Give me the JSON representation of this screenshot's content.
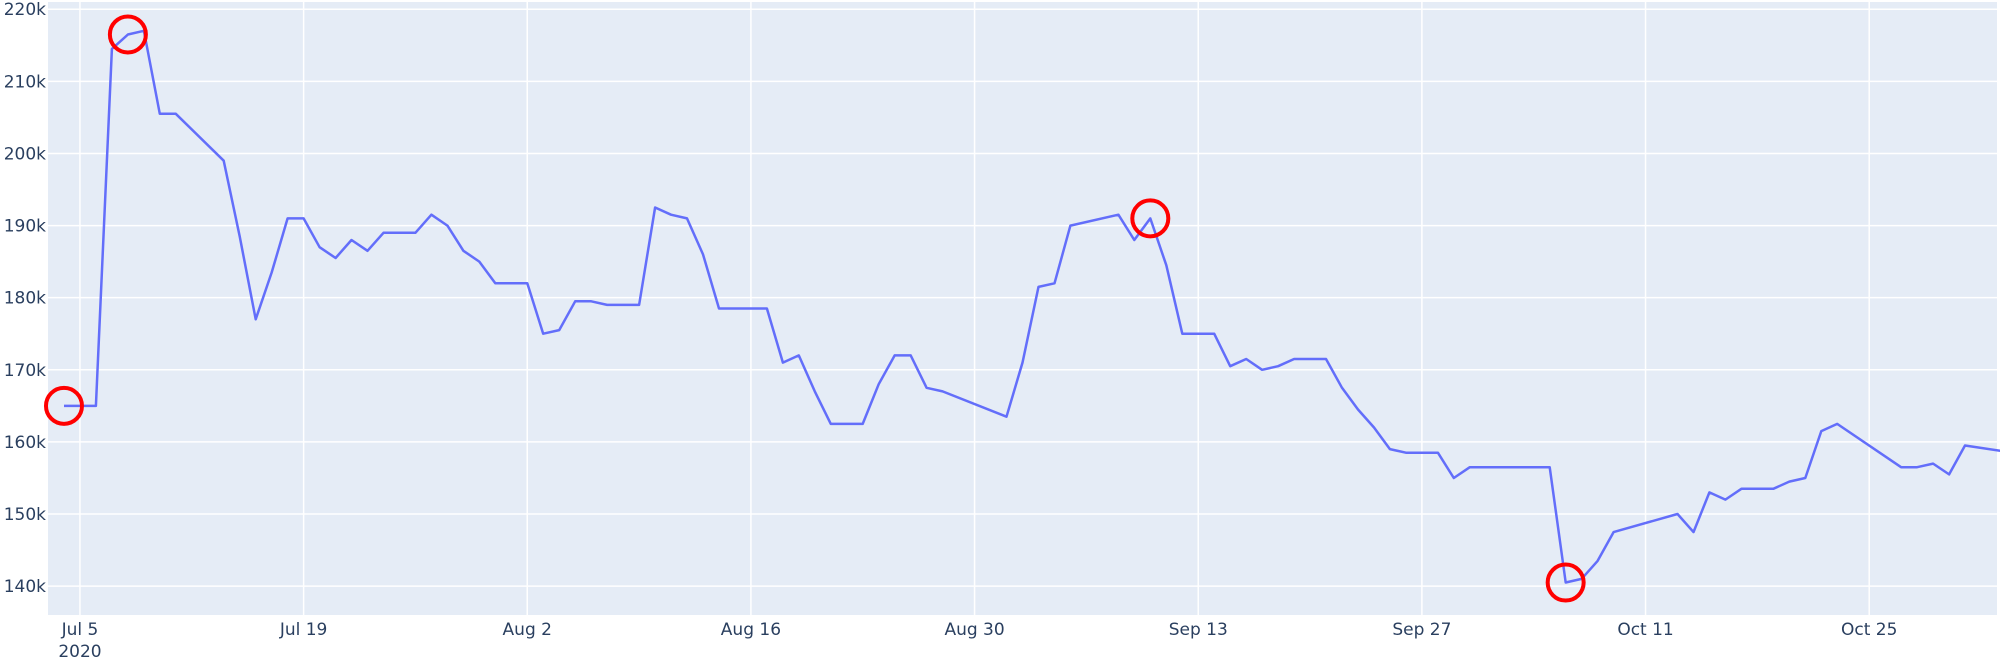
{
  "chart_data": {
    "type": "line",
    "title": "",
    "xlabel": "",
    "ylabel": "",
    "x_start": "2020-07-03",
    "x_end": "2020-11-02",
    "ylim": [
      136000,
      221000
    ],
    "grid": true,
    "legend": "none",
    "colors": {
      "plot_bg": "#e5ecf6",
      "grid": "#ffffff",
      "line": "#636efa",
      "marker": "#ff0000",
      "text": "#2a3f5f"
    },
    "y_ticks": [
      {
        "value": 140000,
        "label": "140k"
      },
      {
        "value": 150000,
        "label": "150k"
      },
      {
        "value": 160000,
        "label": "160k"
      },
      {
        "value": 170000,
        "label": "170k"
      },
      {
        "value": 180000,
        "label": "180k"
      },
      {
        "value": 190000,
        "label": "190k"
      },
      {
        "value": 200000,
        "label": "200k"
      },
      {
        "value": 210000,
        "label": "210k"
      },
      {
        "value": 220000,
        "label": "220k"
      }
    ],
    "x_ticks": [
      {
        "date": "2020-07-05",
        "label": "Jul 5",
        "sublabel": "2020"
      },
      {
        "date": "2020-07-19",
        "label": "Jul 19"
      },
      {
        "date": "2020-08-02",
        "label": "Aug 2"
      },
      {
        "date": "2020-08-16",
        "label": "Aug 16"
      },
      {
        "date": "2020-08-30",
        "label": "Aug 30"
      },
      {
        "date": "2020-09-13",
        "label": "Sep 13"
      },
      {
        "date": "2020-09-27",
        "label": "Sep 27"
      },
      {
        "date": "2020-10-11",
        "label": "Oct 11"
      },
      {
        "date": "2020-10-25",
        "label": "Oct 25"
      }
    ],
    "series": [
      {
        "values": [
          [
            "2020-07-04",
            165000
          ],
          [
            "2020-07-05",
            165000
          ],
          [
            "2020-07-06",
            165000
          ],
          [
            "2020-07-07",
            214500
          ],
          [
            "2020-07-08",
            216500
          ],
          [
            "2020-07-09",
            217000
          ],
          [
            "2020-07-10",
            205500
          ],
          [
            "2020-07-11",
            205500
          ],
          [
            "2020-07-14",
            199000
          ],
          [
            "2020-07-15",
            188500
          ],
          [
            "2020-07-16",
            177000
          ],
          [
            "2020-07-17",
            183500
          ],
          [
            "2020-07-18",
            191000
          ],
          [
            "2020-07-19",
            191000
          ],
          [
            "2020-07-20",
            187000
          ],
          [
            "2020-07-21",
            185500
          ],
          [
            "2020-07-22",
            188000
          ],
          [
            "2020-07-23",
            186500
          ],
          [
            "2020-07-24",
            189000
          ],
          [
            "2020-07-26",
            189000
          ],
          [
            "2020-07-27",
            191500
          ],
          [
            "2020-07-28",
            190000
          ],
          [
            "2020-07-29",
            186500
          ],
          [
            "2020-07-30",
            185000
          ],
          [
            "2020-07-31",
            182000
          ],
          [
            "2020-08-02",
            182000
          ],
          [
            "2020-08-03",
            175000
          ],
          [
            "2020-08-04",
            175500
          ],
          [
            "2020-08-05",
            179500
          ],
          [
            "2020-08-06",
            179500
          ],
          [
            "2020-08-07",
            179000
          ],
          [
            "2020-08-09",
            179000
          ],
          [
            "2020-08-10",
            192500
          ],
          [
            "2020-08-11",
            191500
          ],
          [
            "2020-08-12",
            191000
          ],
          [
            "2020-08-13",
            186000
          ],
          [
            "2020-08-14",
            178500
          ],
          [
            "2020-08-17",
            178500
          ],
          [
            "2020-08-18",
            171000
          ],
          [
            "2020-08-19",
            172000
          ],
          [
            "2020-08-20",
            167000
          ],
          [
            "2020-08-21",
            162500
          ],
          [
            "2020-08-23",
            162500
          ],
          [
            "2020-08-24",
            168000
          ],
          [
            "2020-08-25",
            172000
          ],
          [
            "2020-08-26",
            172000
          ],
          [
            "2020-08-27",
            167500
          ],
          [
            "2020-08-28",
            167000
          ],
          [
            "2020-09-01",
            163500
          ],
          [
            "2020-09-02",
            171000
          ],
          [
            "2020-09-03",
            181500
          ],
          [
            "2020-09-04",
            182000
          ],
          [
            "2020-09-05",
            190000
          ],
          [
            "2020-09-08",
            191500
          ],
          [
            "2020-09-09",
            188000
          ],
          [
            "2020-09-10",
            191000
          ],
          [
            "2020-09-11",
            184500
          ],
          [
            "2020-09-12",
            175000
          ],
          [
            "2020-09-14",
            175000
          ],
          [
            "2020-09-15",
            170500
          ],
          [
            "2020-09-16",
            171500
          ],
          [
            "2020-09-17",
            170000
          ],
          [
            "2020-09-18",
            170500
          ],
          [
            "2020-09-19",
            171500
          ],
          [
            "2020-09-21",
            171500
          ],
          [
            "2020-09-22",
            167500
          ],
          [
            "2020-09-23",
            164500
          ],
          [
            "2020-09-24",
            162000
          ],
          [
            "2020-09-25",
            159000
          ],
          [
            "2020-09-26",
            158500
          ],
          [
            "2020-09-28",
            158500
          ],
          [
            "2020-09-29",
            155000
          ],
          [
            "2020-09-30",
            156500
          ],
          [
            "2020-10-05",
            156500
          ],
          [
            "2020-10-06",
            140500
          ],
          [
            "2020-10-07",
            141000
          ],
          [
            "2020-10-08",
            143500
          ],
          [
            "2020-10-09",
            147500
          ],
          [
            "2020-10-13",
            150000
          ],
          [
            "2020-10-14",
            147500
          ],
          [
            "2020-10-15",
            153000
          ],
          [
            "2020-10-16",
            152000
          ],
          [
            "2020-10-17",
            153500
          ],
          [
            "2020-10-19",
            153500
          ],
          [
            "2020-10-20",
            154500
          ],
          [
            "2020-10-21",
            155000
          ],
          [
            "2020-10-22",
            161500
          ],
          [
            "2020-10-23",
            162500
          ],
          [
            "2020-10-27",
            156500
          ],
          [
            "2020-10-28",
            156500
          ],
          [
            "2020-10-29",
            157000
          ],
          [
            "2020-10-30",
            155500
          ],
          [
            "2020-10-31",
            159500
          ],
          [
            "2020-11-03",
            158500
          ]
        ]
      }
    ],
    "highlighted_points": [
      [
        "2020-07-04",
        165000
      ],
      [
        "2020-07-08",
        216500
      ],
      [
        "2020-09-10",
        191000
      ],
      [
        "2020-10-06",
        140500
      ]
    ]
  }
}
